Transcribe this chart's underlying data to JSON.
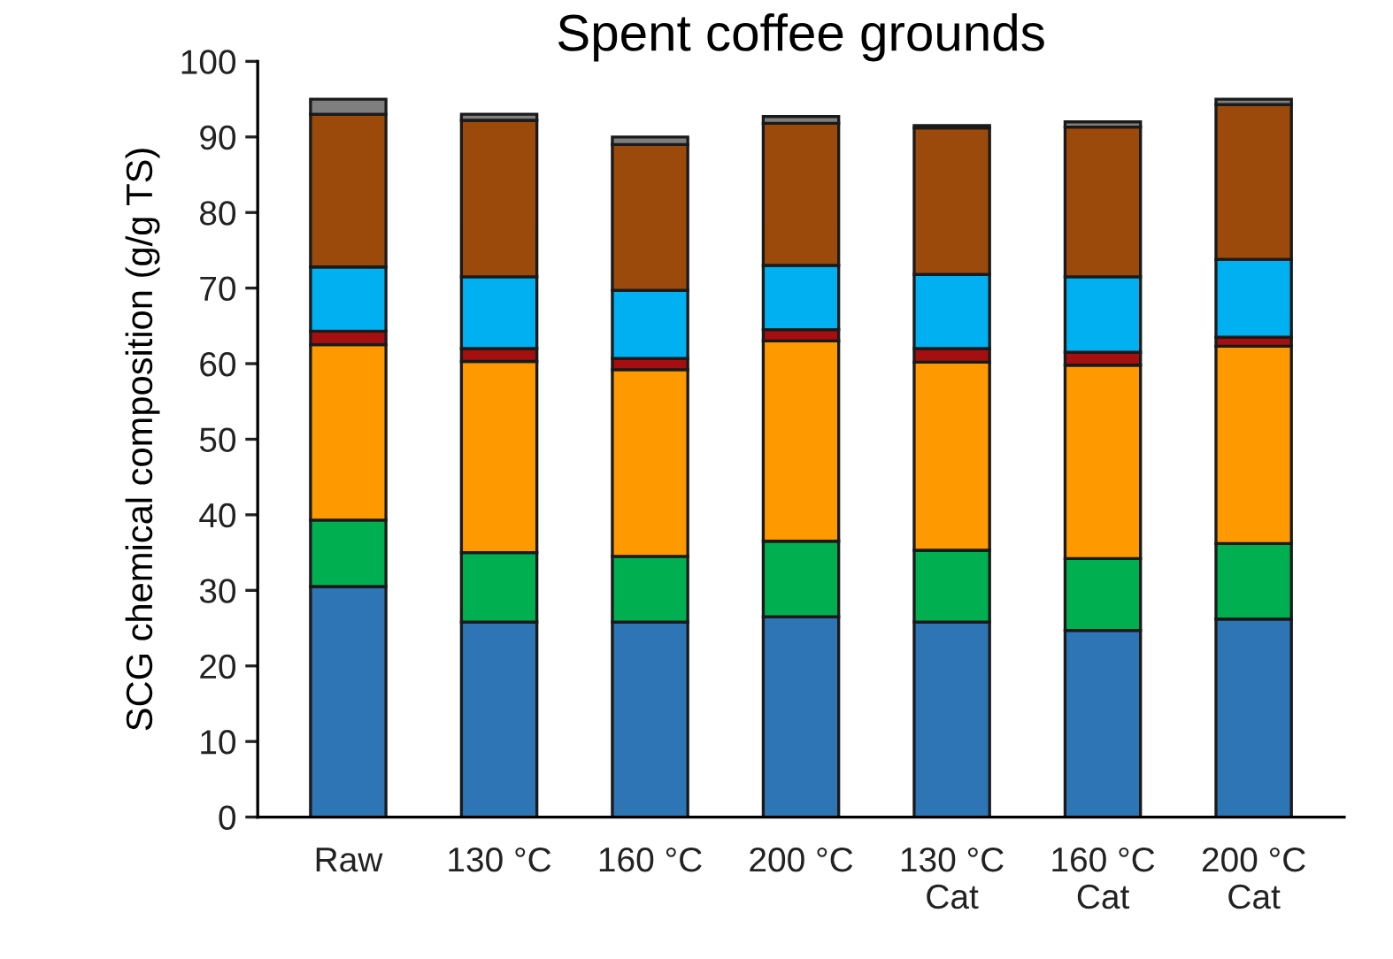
{
  "chart_data": {
    "type": "bar",
    "title": "Spent coffee grounds",
    "ylabel": "SCG chemical composition (g/g TS)",
    "categories": [
      "Raw",
      "130 °C",
      "160 °C",
      "200 °C",
      "130 °C\nCat",
      "160 °C\nCat",
      "200 °C\nCat"
    ],
    "stacked": true,
    "ylim": [
      0,
      100
    ],
    "yticks": [
      0,
      10,
      20,
      30,
      40,
      50,
      60,
      70,
      80,
      90,
      100
    ],
    "grid": false,
    "series": [
      {
        "color": "#2e75b6",
        "values": [
          30.5,
          25.8,
          25.8,
          26.5,
          25.8,
          24.7,
          26.2
        ]
      },
      {
        "color": "#00b050",
        "values": [
          8.8,
          9.2,
          8.7,
          10,
          9.5,
          9.5,
          10
        ]
      },
      {
        "color": "#ff9900",
        "values": [
          23.2,
          25.3,
          24.7,
          26.5,
          24.9,
          25.6,
          26.1
        ]
      },
      {
        "color": "#a50f0f",
        "values": [
          1.8,
          1.7,
          1.5,
          1.5,
          1.8,
          1.7,
          1.2
        ]
      },
      {
        "color": "#00b0f0",
        "values": [
          8.5,
          9.5,
          9,
          8.5,
          9.8,
          10,
          10.3
        ]
      },
      {
        "color": "#9c4a0c",
        "values": [
          20.2,
          20.7,
          19.3,
          18.8,
          19.4,
          19.8,
          20.5
        ]
      },
      {
        "color": "#7f7f7f",
        "values": [
          2,
          0.8,
          1,
          0.9,
          0.3,
          0.7,
          0.7
        ]
      }
    ]
  }
}
